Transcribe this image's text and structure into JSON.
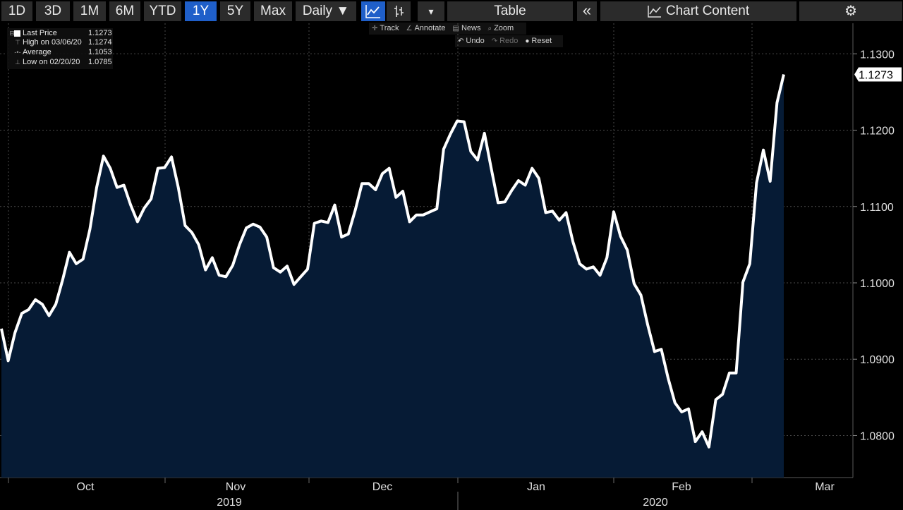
{
  "toolbar": {
    "periods": [
      "1D",
      "3D",
      "1M",
      "6M",
      "YTD",
      "1Y",
      "5Y",
      "Max"
    ],
    "active_period": "1Y",
    "frequency": "Daily ▼",
    "dropdown_arrow": "▾",
    "table_label": "Table",
    "collapse_label": "«",
    "chart_content_label": "Chart Content",
    "icons": [
      "line-chart-icon",
      "bar-chart-icon",
      "chart-content-icon",
      "gear-icon"
    ]
  },
  "subtoolbar": {
    "track": "Track",
    "annotate": "Annotate",
    "news": "News",
    "zoom": "Zoom",
    "undo": "Undo",
    "redo": "Redo",
    "reset": "Reset"
  },
  "legend": {
    "rows": [
      {
        "name": "Last Price",
        "value": "1.1273"
      },
      {
        "name": "High on 03/06/20",
        "value": "1.1274"
      },
      {
        "name": "Average",
        "value": "1.1053"
      },
      {
        "name": "Low on 02/20/20",
        "value": "1.0785"
      }
    ]
  },
  "chart_data": {
    "type": "area",
    "series": [
      {
        "values": [
          1.094,
          1.0898,
          1.0935,
          1.096,
          1.0965,
          1.0978,
          1.0972,
          1.0957,
          1.0972,
          1.1004,
          1.104,
          1.1025,
          1.1031,
          1.107,
          1.1125,
          1.1166,
          1.115,
          1.1125,
          1.1128,
          1.1102,
          1.108,
          1.1098,
          1.111,
          1.115,
          1.1151,
          1.1165,
          1.1125,
          1.1075,
          1.1066,
          1.105,
          1.1017,
          1.1033,
          1.101,
          1.1008,
          1.1023,
          1.105,
          1.1072,
          1.1077,
          1.1073,
          1.106,
          1.102,
          1.1014,
          1.1022,
          1.0998,
          1.1008,
          1.1018,
          1.1078,
          1.1081,
          1.1079,
          1.1102,
          1.106,
          1.1064,
          1.1095,
          1.113,
          1.113,
          1.1122,
          1.1143,
          1.115,
          1.1112,
          1.112,
          1.108,
          1.1089,
          1.1089,
          1.1093,
          1.1097,
          1.1175,
          1.1195,
          1.1212,
          1.1211,
          1.1172,
          1.1161,
          1.1196,
          1.115,
          1.1105,
          1.1106,
          1.1121,
          1.1134,
          1.1128,
          1.115,
          1.1137,
          1.1092,
          1.1094,
          1.1082,
          1.1092,
          1.1054,
          1.1025,
          1.1018,
          1.1021,
          1.101,
          1.1033,
          1.1093,
          1.1061,
          1.1043,
          1.0999,
          1.0984,
          1.0945,
          1.091,
          1.0913,
          1.0875,
          1.0843,
          1.0831,
          1.0835,
          1.0792,
          1.0805,
          1.0785,
          1.0847,
          1.0854,
          1.0882,
          1.0882,
          1.1001,
          1.1025,
          1.1131,
          1.1174,
          1.1133,
          1.1236,
          1.1273
        ]
      }
    ],
    "x_labels": [
      "Oct",
      "Nov",
      "Dec",
      "Jan",
      "Feb",
      "Mar"
    ],
    "year_labels": [
      "2019",
      "2020"
    ],
    "y_ticks": [
      "1.0800",
      "1.0900",
      "1.1000",
      "1.1100",
      "1.1200",
      "1.1300"
    ],
    "ylim": [
      1.0745,
      1.134
    ],
    "last_value_label": "1.1273",
    "grid": true,
    "line_color": "#ffffff",
    "fill_color": "#061b35",
    "background": "#000000"
  }
}
